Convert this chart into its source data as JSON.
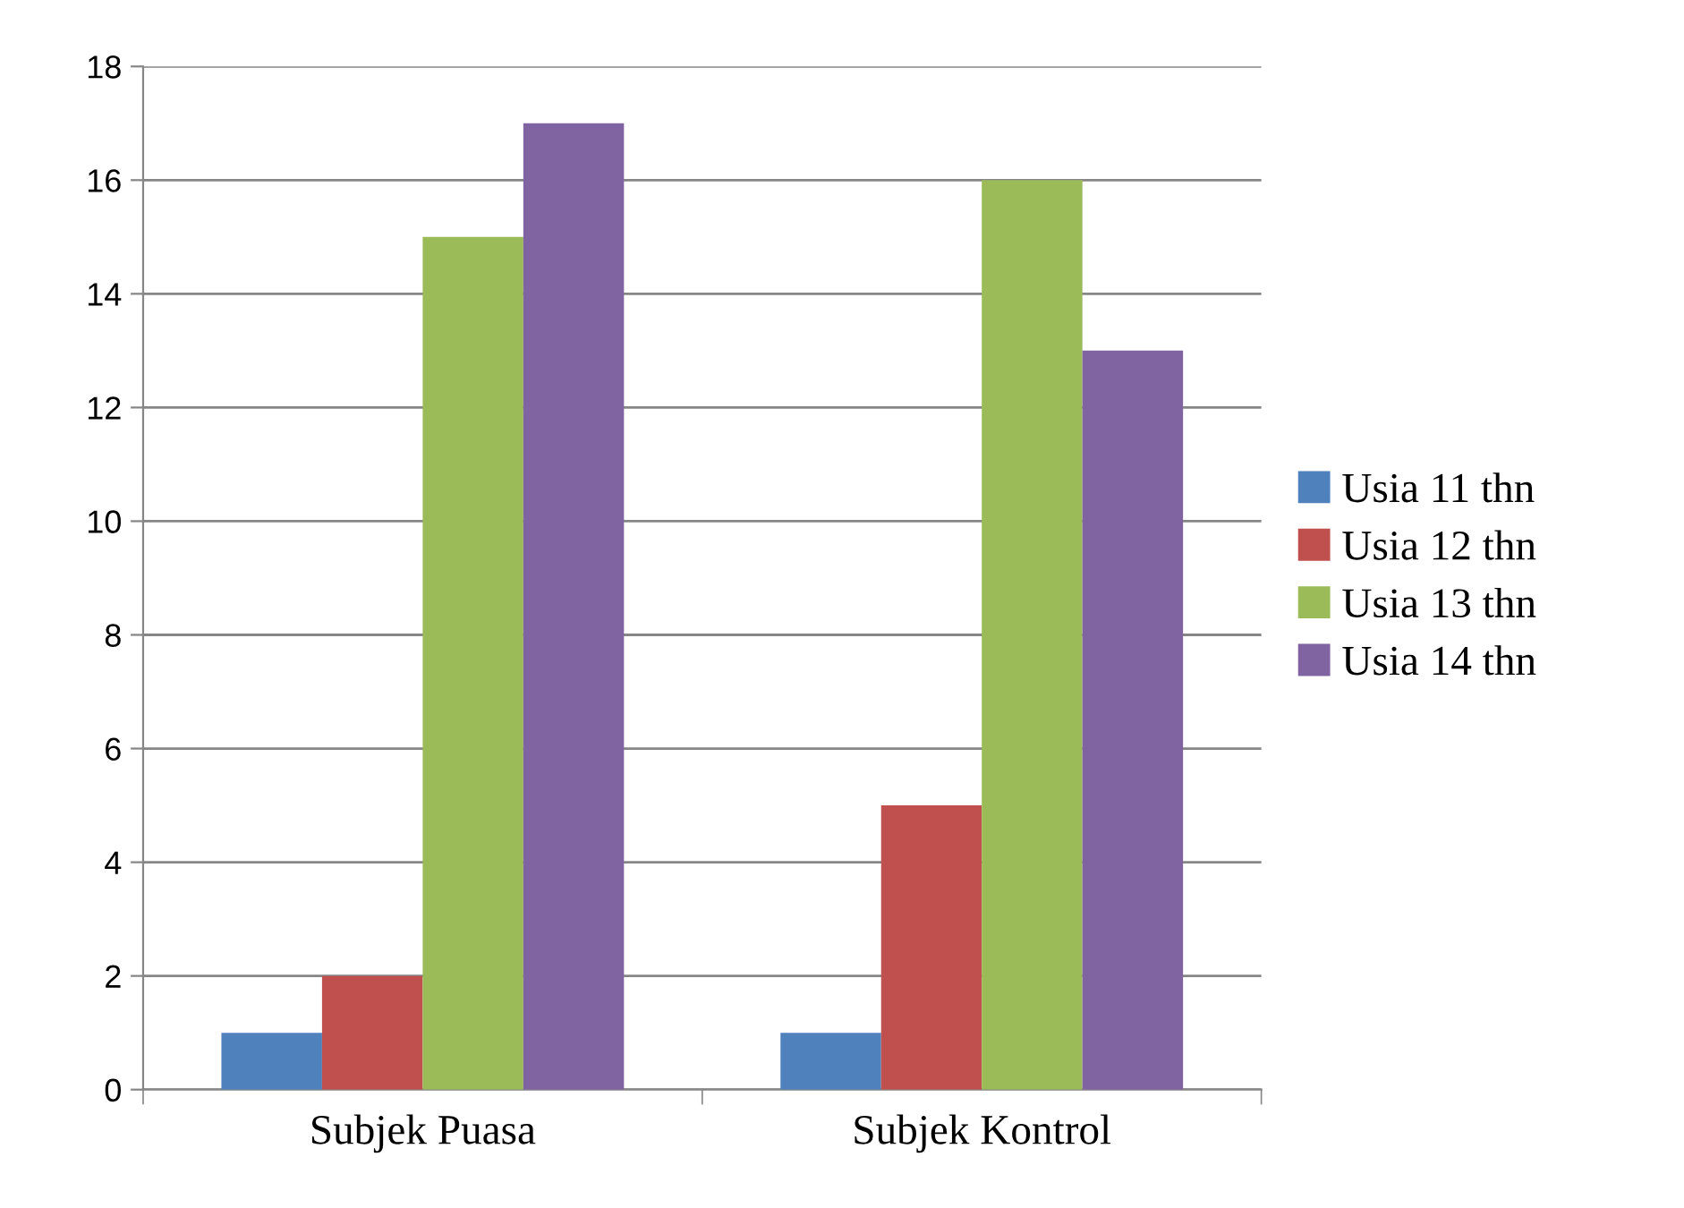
{
  "chart_data": {
    "type": "bar",
    "categories": [
      "Subjek Puasa",
      "Subjek Kontrol"
    ],
    "series": [
      {
        "name": "Usia 11 thn",
        "color": "#4f81bd",
        "values": [
          1,
          1
        ]
      },
      {
        "name": "Usia 12 thn",
        "color": "#c0504d",
        "values": [
          2,
          5
        ]
      },
      {
        "name": "Usia 13 thn",
        "color": "#9bbb59",
        "values": [
          15,
          16
        ]
      },
      {
        "name": "Usia 14 thn",
        "color": "#8064a2",
        "values": [
          17,
          13
        ]
      }
    ],
    "ylim": [
      0,
      18
    ],
    "yticks": [
      0,
      2,
      4,
      6,
      8,
      10,
      12,
      14,
      16,
      18
    ],
    "grid": "y",
    "legend": "right"
  }
}
